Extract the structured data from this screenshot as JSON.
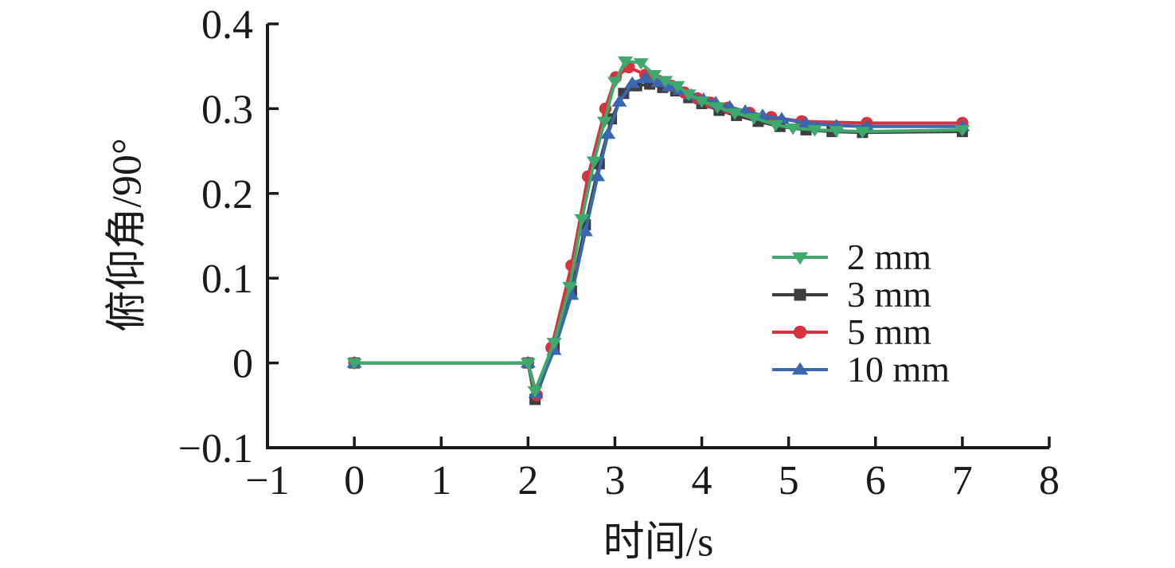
{
  "chart_data": {
    "type": "line",
    "title": "",
    "xlabel": "时间/s",
    "ylabel": "俯仰角/90°",
    "xlim": [
      -1,
      8
    ],
    "ylim": [
      -0.1,
      0.4
    ],
    "grid": false,
    "legend_position": "inside-right-center",
    "axis_color": "#1a1a1a",
    "x_tick_values": [
      -1,
      0,
      1,
      2,
      3,
      4,
      5,
      6,
      7,
      8
    ],
    "x_tick_labels": [
      "−1",
      "0",
      "1",
      "2",
      "3",
      "4",
      "5",
      "6",
      "7",
      "8"
    ],
    "y_tick_values": [
      -0.1,
      0,
      0.1,
      0.2,
      0.3,
      0.4
    ],
    "y_tick_labels": [
      "−0.1",
      "0",
      "0.1",
      "0.2",
      "0.3",
      "0.4"
    ],
    "series": [
      {
        "name": "2 mm",
        "color": "#3FA96C",
        "marker": "triangle-down",
        "points": [
          [
            0,
            0
          ],
          [
            2,
            0
          ],
          [
            2.08,
            -0.033
          ],
          [
            2.3,
            0.024
          ],
          [
            2.48,
            0.09
          ],
          [
            2.62,
            0.17
          ],
          [
            2.76,
            0.238
          ],
          [
            2.88,
            0.285
          ],
          [
            3.0,
            0.332
          ],
          [
            3.12,
            0.356
          ],
          [
            3.3,
            0.354
          ],
          [
            3.45,
            0.34
          ],
          [
            3.58,
            0.333
          ],
          [
            3.72,
            0.327
          ],
          [
            3.85,
            0.317
          ],
          [
            4.0,
            0.309
          ],
          [
            4.18,
            0.302
          ],
          [
            4.38,
            0.295
          ],
          [
            4.6,
            0.289
          ],
          [
            4.85,
            0.281
          ],
          [
            5.05,
            0.277
          ],
          [
            5.3,
            0.275
          ],
          [
            5.55,
            0.274
          ],
          [
            5.85,
            0.273
          ],
          [
            7.0,
            0.275
          ]
        ]
      },
      {
        "name": "3 mm",
        "color": "#3E3E40",
        "marker": "square",
        "points": [
          [
            0,
            0
          ],
          [
            2,
            0
          ],
          [
            2.08,
            -0.043
          ],
          [
            2.3,
            0.018
          ],
          [
            2.5,
            0.085
          ],
          [
            2.66,
            0.163
          ],
          [
            2.82,
            0.235
          ],
          [
            2.96,
            0.288
          ],
          [
            3.1,
            0.318
          ],
          [
            3.25,
            0.327
          ],
          [
            3.4,
            0.329
          ],
          [
            3.55,
            0.325
          ],
          [
            3.7,
            0.321
          ],
          [
            3.85,
            0.313
          ],
          [
            4.0,
            0.306
          ],
          [
            4.2,
            0.298
          ],
          [
            4.4,
            0.292
          ],
          [
            4.65,
            0.285
          ],
          [
            4.9,
            0.279
          ],
          [
            5.2,
            0.275
          ],
          [
            5.5,
            0.273
          ],
          [
            5.85,
            0.272
          ],
          [
            7.0,
            0.273
          ]
        ]
      },
      {
        "name": "5 mm",
        "color": "#D7333E",
        "marker": "circle",
        "points": [
          [
            0,
            0
          ],
          [
            2,
            0
          ],
          [
            2.1,
            -0.038
          ],
          [
            2.27,
            0.018
          ],
          [
            2.5,
            0.115
          ],
          [
            2.69,
            0.22
          ],
          [
            2.89,
            0.3
          ],
          [
            3.01,
            0.337
          ],
          [
            3.16,
            0.349
          ],
          [
            3.35,
            0.34
          ],
          [
            3.5,
            0.333
          ],
          [
            3.65,
            0.327
          ],
          [
            3.8,
            0.319
          ],
          [
            3.95,
            0.312
          ],
          [
            4.1,
            0.307
          ],
          [
            4.3,
            0.301
          ],
          [
            4.55,
            0.295
          ],
          [
            4.8,
            0.29
          ],
          [
            5.15,
            0.285
          ],
          [
            5.9,
            0.283
          ],
          [
            7.0,
            0.283
          ]
        ]
      },
      {
        "name": "10 mm",
        "color": "#3A67AE",
        "marker": "triangle-up",
        "points": [
          [
            0,
            0
          ],
          [
            2,
            0
          ],
          [
            2.09,
            -0.036
          ],
          [
            2.3,
            0.015
          ],
          [
            2.5,
            0.08
          ],
          [
            2.66,
            0.155
          ],
          [
            2.8,
            0.22
          ],
          [
            2.92,
            0.27
          ],
          [
            3.05,
            0.308
          ],
          [
            3.2,
            0.33
          ],
          [
            3.35,
            0.336
          ],
          [
            3.5,
            0.331
          ],
          [
            3.62,
            0.326
          ],
          [
            3.75,
            0.322
          ],
          [
            3.88,
            0.316
          ],
          [
            4.02,
            0.311
          ],
          [
            4.16,
            0.307
          ],
          [
            4.32,
            0.302
          ],
          [
            4.5,
            0.297
          ],
          [
            4.7,
            0.292
          ],
          [
            4.92,
            0.288
          ],
          [
            5.2,
            0.283
          ],
          [
            5.55,
            0.28
          ],
          [
            5.9,
            0.279
          ],
          [
            7.0,
            0.279
          ]
        ]
      }
    ]
  }
}
